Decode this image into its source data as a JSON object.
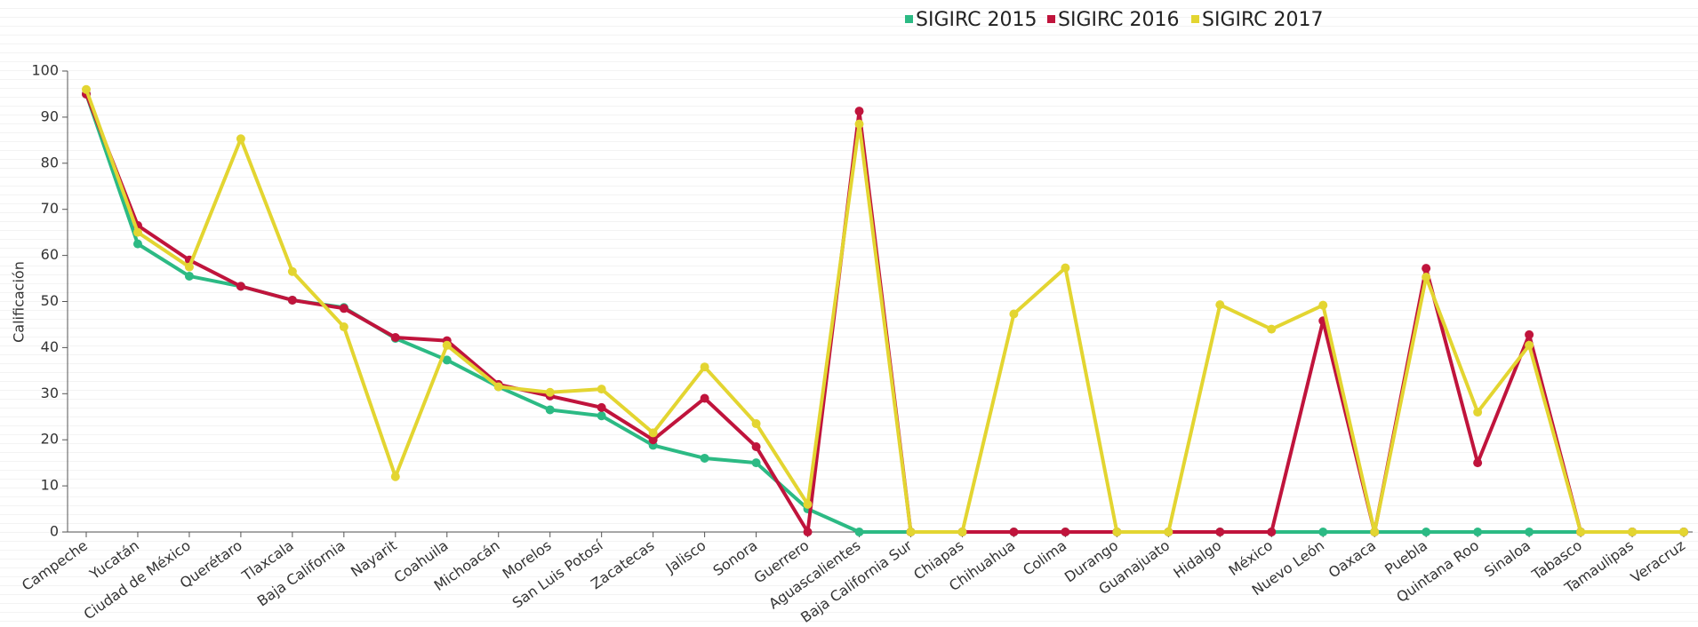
{
  "chart_data": {
    "type": "line",
    "y_label": "Calificación",
    "categories": [
      "Campeche",
      "Yucatán",
      "Ciudad de México",
      "Querétaro",
      "Tlaxcala",
      "Baja California",
      "Nayarit",
      "Coahuila",
      "Michoacán",
      "Morelos",
      "San Luis Potosí",
      "Zacatecas",
      "Jalisco",
      "Sonora",
      "Guerrero",
      "Aguascalientes",
      "Baja California Sur",
      "Chiapas",
      "Chihuahua",
      "Colima",
      "Durango",
      "Guanajuato",
      "Hidalgo",
      "México",
      "Nuevo León",
      "Oaxaca",
      "Puebla",
      "Quintana Roo",
      "Sinaloa",
      "Tabasco",
      "Tamaulipas",
      "Veracruz"
    ],
    "series": [
      {
        "name": "SIGIRC 2015",
        "color": "#2cba84",
        "values": [
          95,
          62.5,
          55.5,
          53.3,
          50.3,
          48.7,
          42,
          37.3,
          31.5,
          26.5,
          25.2,
          18.8,
          16,
          15,
          5,
          0,
          0,
          0,
          0,
          0,
          0,
          0,
          0,
          0,
          0,
          0,
          0,
          0,
          0,
          0,
          0,
          0
        ]
      },
      {
        "name": "SIGIRC 2016",
        "color": "#c0143c",
        "values": [
          95,
          66.5,
          59,
          53.3,
          50.3,
          48.5,
          42.2,
          41.5,
          32,
          29.5,
          27,
          20,
          29,
          18.5,
          0,
          91.3,
          0,
          0,
          0,
          0,
          0,
          0,
          0,
          0,
          45.8,
          0,
          57.2,
          15,
          42.8,
          0,
          0,
          0
        ]
      },
      {
        "name": "SIGIRC 2017",
        "color": "#e3d531",
        "values": [
          96,
          65,
          57.5,
          85.3,
          56.5,
          44.5,
          12,
          40.5,
          31.5,
          30.3,
          31,
          21.5,
          35.8,
          23.5,
          6,
          88.5,
          0,
          0,
          47.3,
          57.3,
          0,
          0,
          49.3,
          44,
          49.2,
          0,
          55.3,
          26,
          40.5,
          0,
          0,
          0
        ]
      }
    ],
    "ylim": [
      0,
      100
    ],
    "yticks": [
      0,
      10,
      20,
      30,
      40,
      50,
      60,
      70,
      80,
      90,
      100
    ],
    "legend": "top"
  }
}
